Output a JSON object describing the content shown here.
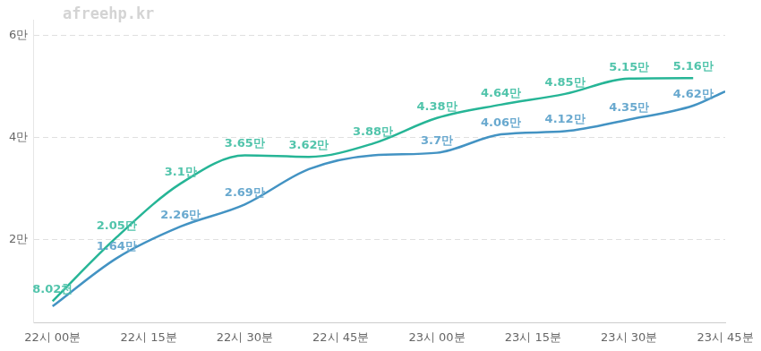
{
  "chart_data": {
    "type": "line",
    "annotations": [
      "afreehp.kr"
    ],
    "x": [
      1320,
      1330,
      1340,
      1350,
      1360,
      1370,
      1380,
      1390,
      1400,
      1410,
      1420,
      1425
    ],
    "series": [
      {
        "name": null,
        "color": "#26b596",
        "values": [
          8020,
          20500,
          31000,
          36500,
          36200,
          38800,
          43800,
          46400,
          48500,
          51500,
          51600,
          null
        ],
        "value_labels": [
          "8.02천",
          "2.05만",
          "3.1만",
          "3.65만",
          "3.62만",
          "3.88만",
          "4.38만",
          "4.64만",
          "4.85만",
          "5.15만",
          "5.16만",
          null
        ]
      },
      {
        "name": null,
        "color": "#4393c3",
        "values": [
          7000,
          16400,
          22600,
          26900,
          33800,
          36500,
          37000,
          40600,
          41200,
          43500,
          46200,
          49000
        ],
        "value_labels": [
          null,
          "1.64만",
          "2.26만",
          "2.69만",
          null,
          null,
          "3.7만",
          "4.06만",
          "4.12만",
          "4.35만",
          "4.62만",
          null
        ]
      }
    ],
    "xlim": [
      1317,
      1425
    ],
    "xticks": [
      {
        "value": 1320,
        "label": "22시 00분"
      },
      {
        "value": 1335,
        "label": "22시 15분"
      },
      {
        "value": 1350,
        "label": "22시 30분"
      },
      {
        "value": 1365,
        "label": "22시 45분"
      },
      {
        "value": 1380,
        "label": "23시 00분"
      },
      {
        "value": 1395,
        "label": "23시 15분"
      },
      {
        "value": 1410,
        "label": "23시 30분"
      },
      {
        "value": 1425,
        "label": "23시 45분"
      }
    ],
    "ylim": [
      3800,
      63000
    ],
    "yticks": [
      {
        "value": 20000,
        "label": "2만"
      },
      {
        "value": 40000,
        "label": "4만"
      },
      {
        "value": 60000,
        "label": "6만"
      }
    ],
    "grid": true,
    "data_labels": true
  }
}
